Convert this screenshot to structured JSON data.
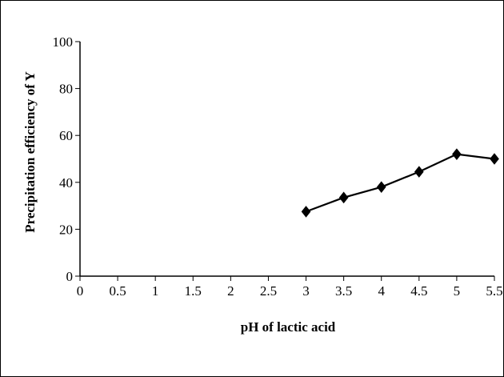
{
  "chart_data": {
    "type": "line",
    "title": "",
    "xlabel": "pH of lactic acid",
    "ylabel": "Precipitation efficiency of Y",
    "xlim": [
      0,
      5.5
    ],
    "ylim": [
      0,
      100
    ],
    "x_ticks": [
      "0",
      "0.5",
      "1",
      "1.5",
      "2",
      "2.5",
      "3",
      "3.5",
      "4",
      "4.5",
      "5",
      "5.5"
    ],
    "y_ticks": [
      "0",
      "20",
      "40",
      "60",
      "80",
      "100"
    ],
    "grid": false,
    "legend": "none",
    "series": [
      {
        "marker": "diamond",
        "color": "#000000",
        "x": [
          3,
          3.5,
          4,
          4.5,
          5,
          5.5
        ],
        "y": [
          27.5,
          33.5,
          38,
          44.5,
          52,
          50
        ]
      }
    ]
  }
}
